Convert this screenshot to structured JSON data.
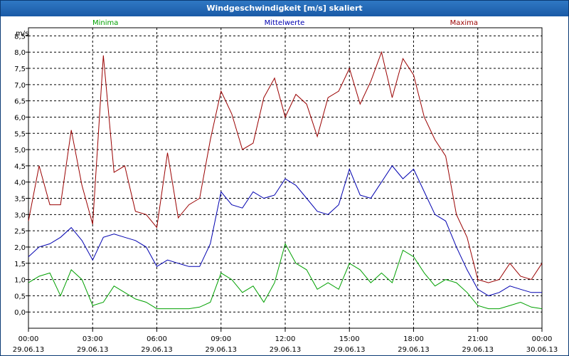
{
  "window": {
    "title": "Windgeschwindigkeit [m/s] skaliert"
  },
  "chart_data": {
    "type": "line",
    "title": "Windgeschwindigkeit [m/s] skaliert",
    "ylabel": "m/s",
    "ylim": [
      -0.5,
      8.75
    ],
    "xlim": [
      0,
      24
    ],
    "grid": true,
    "legend_placement": "top",
    "y_ticks": [
      "0,0",
      "0,5",
      "1,0",
      "1,5",
      "2,0",
      "2,5",
      "3,0",
      "3,5",
      "4,0",
      "4,5",
      "5,0",
      "5,5",
      "6,0",
      "6,5",
      "7,0",
      "7,5",
      "8,0",
      "8,5"
    ],
    "x_ticks": [
      {
        "time": "00:00",
        "date": "29.06.13"
      },
      {
        "time": "03:00",
        "date": "29.06.13"
      },
      {
        "time": "06:00",
        "date": "29.06.13"
      },
      {
        "time": "09:00",
        "date": "29.06.13"
      },
      {
        "time": "12:00",
        "date": "29.06.13"
      },
      {
        "time": "15:00",
        "date": "29.06.13"
      },
      {
        "time": "18:00",
        "date": "29.06.13"
      },
      {
        "time": "21:00",
        "date": "29.06.13"
      },
      {
        "time": "00:00",
        "date": "30.06.13"
      }
    ],
    "x": [
      0,
      0.5,
      1,
      1.5,
      2,
      2.5,
      3,
      3.5,
      4,
      4.5,
      5,
      5.5,
      6,
      6.5,
      7,
      7.5,
      8,
      8.5,
      9,
      9.5,
      10,
      10.5,
      11,
      11.5,
      12,
      12.5,
      13,
      13.5,
      14,
      14.5,
      15,
      15.5,
      16,
      16.5,
      17,
      17.5,
      18,
      18.5,
      19,
      19.5,
      20,
      20.5,
      21,
      21.5,
      22,
      22.5,
      23,
      23.5,
      24
    ],
    "series": [
      {
        "name": "Minima",
        "color": "#00a000",
        "values": [
          0.9,
          1.1,
          1.2,
          0.5,
          1.3,
          1.0,
          0.2,
          0.3,
          0.8,
          0.6,
          0.4,
          0.3,
          0.1,
          0.1,
          0.1,
          0.1,
          0.15,
          0.3,
          1.2,
          1.0,
          0.6,
          0.8,
          0.3,
          0.9,
          2.1,
          1.5,
          1.3,
          0.7,
          0.9,
          0.7,
          1.5,
          1.3,
          0.9,
          1.2,
          0.9,
          1.9,
          1.7,
          1.2,
          0.8,
          1.0,
          0.9,
          0.6,
          0.2,
          0.1,
          0.1,
          0.2,
          0.3,
          0.15,
          0.1
        ]
      },
      {
        "name": "Mittelwerte",
        "color": "#0000b0",
        "values": [
          1.7,
          2.0,
          2.1,
          2.3,
          2.6,
          2.2,
          1.6,
          2.3,
          2.4,
          2.3,
          2.2,
          2.0,
          1.4,
          1.6,
          1.5,
          1.4,
          1.4,
          2.1,
          3.7,
          3.3,
          3.2,
          3.7,
          3.5,
          3.6,
          4.1,
          3.9,
          3.5,
          3.1,
          3.0,
          3.3,
          4.4,
          3.6,
          3.5,
          4.0,
          4.5,
          4.1,
          4.4,
          3.7,
          3.0,
          2.8,
          2.0,
          1.3,
          0.7,
          0.5,
          0.6,
          0.8,
          0.7,
          0.6,
          0.6
        ]
      },
      {
        "name": "Maxima",
        "color": "#9a0000",
        "values": [
          2.8,
          4.5,
          3.3,
          3.3,
          5.6,
          3.9,
          2.7,
          7.9,
          4.3,
          4.5,
          3.1,
          3.0,
          2.6,
          4.9,
          2.9,
          3.3,
          3.5,
          5.3,
          6.8,
          6.1,
          5.0,
          5.2,
          6.6,
          7.2,
          6.0,
          6.7,
          6.4,
          5.4,
          6.6,
          6.8,
          7.5,
          6.4,
          7.1,
          8.0,
          6.6,
          7.8,
          7.3,
          6.0,
          5.3,
          4.8,
          3.0,
          2.3,
          1.0,
          0.9,
          1.0,
          1.5,
          1.1,
          1.0,
          1.5
        ]
      }
    ]
  }
}
